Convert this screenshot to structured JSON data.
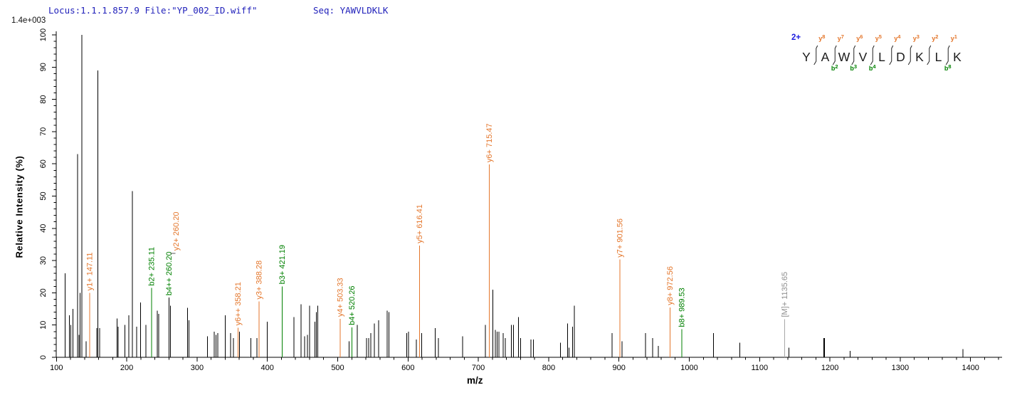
{
  "header": {
    "locus_file": "Locus:1.1.1.857.9 File:\"YP_002_ID.wiff\"",
    "sequence": "Seq: YAWVLDKLK",
    "base_peak_intensity": "1.4e+003"
  },
  "colors": {
    "y_ion_orange": "#E4762B",
    "b_ion_green": "#008000",
    "precursor_gray_line": "#A8A8A8",
    "precursor_gray_text": "#8E8E8E",
    "header_blue": "#2222BB",
    "charge_blue": "#1C1CDF",
    "peak_black": "#000000"
  },
  "chart_data": {
    "type": "bar",
    "subtype": "mass-spectrum",
    "title": "",
    "xlabel": "m/z",
    "ylabel": "Relative  Intensity (%)",
    "xlim": [
      100,
      1445
    ],
    "ylim": [
      0,
      100
    ],
    "x_major_ticks": [
      100,
      200,
      300,
      400,
      500,
      600,
      700,
      800,
      900,
      1000,
      1100,
      1200,
      1300,
      1400
    ],
    "x_minor_step": 20,
    "y_major_ticks": [
      0,
      10,
      20,
      30,
      40,
      50,
      60,
      70,
      80,
      90,
      100
    ],
    "y_minor_step": 2,
    "grid": false,
    "peaks_format": [
      "mz",
      "relative_intensity_pct",
      "optional_px_width"
    ],
    "peaks": [
      [
        112.1,
        26
      ],
      [
        118.2,
        13
      ],
      [
        120.3,
        10
      ],
      [
        123.5,
        15
      ],
      [
        130.1,
        63
      ],
      [
        132.3,
        7
      ],
      [
        133.8,
        20
      ],
      [
        136.1,
        100
      ],
      [
        142,
        5
      ],
      [
        157.5,
        9
      ],
      [
        159.1,
        89
      ],
      [
        161.5,
        9
      ],
      [
        186,
        12
      ],
      [
        187.8,
        9.5
      ],
      [
        197.5,
        10
      ],
      [
        203,
        13
      ],
      [
        208,
        51.5
      ],
      [
        214,
        9.5
      ],
      [
        219.5,
        17
      ],
      [
        227,
        10
      ],
      [
        243.5,
        14.5
      ],
      [
        245.5,
        13.5
      ],
      [
        262,
        16
      ],
      [
        286.5,
        15.3
      ],
      [
        288.5,
        11.5
      ],
      [
        315,
        6.5
      ],
      [
        324.5,
        8
      ],
      [
        327,
        7
      ],
      [
        329.5,
        7.5
      ],
      [
        340,
        13
      ],
      [
        347.5,
        7.5
      ],
      [
        351.5,
        6
      ],
      [
        360.5,
        8
      ],
      [
        376.5,
        6
      ],
      [
        385,
        6
      ],
      [
        400,
        11
      ],
      [
        438,
        12.5
      ],
      [
        448,
        16.5
      ],
      [
        453,
        6.5
      ],
      [
        457,
        7
      ],
      [
        460,
        16
      ],
      [
        467.5,
        11
      ],
      [
        469.5,
        14
      ],
      [
        471.5,
        16
      ],
      [
        516,
        5
      ],
      [
        528,
        10
      ],
      [
        541,
        6
      ],
      [
        544,
        6
      ],
      [
        547,
        7.5
      ],
      [
        552,
        10.5
      ],
      [
        558,
        11.5
      ],
      [
        570.5,
        14.5
      ],
      [
        573,
        14
      ],
      [
        598,
        7.5
      ],
      [
        600.5,
        8
      ],
      [
        612,
        5.5
      ],
      [
        619.5,
        7.5
      ],
      [
        638.5,
        9
      ],
      [
        643,
        6
      ],
      [
        677.5,
        6.5
      ],
      [
        710,
        10
      ],
      [
        720.5,
        21
      ],
      [
        724,
        8.5
      ],
      [
        726.5,
        8
      ],
      [
        729,
        8
      ],
      [
        735.5,
        7.5
      ],
      [
        738.5,
        6
      ],
      [
        747,
        10
      ],
      [
        750,
        10
      ],
      [
        757,
        12.5
      ],
      [
        760,
        6
      ],
      [
        775,
        5.5
      ],
      [
        778.5,
        5.5
      ],
      [
        817,
        4.5
      ],
      [
        827,
        10.5
      ],
      [
        829,
        3
      ],
      [
        834,
        9.5
      ],
      [
        836.5,
        16
      ],
      [
        890,
        7.5
      ],
      [
        904.5,
        5
      ],
      [
        938,
        7.5
      ],
      [
        948,
        6
      ],
      [
        956,
        3.5
      ],
      [
        1034.5,
        7.5
      ],
      [
        1072,
        4.5
      ],
      [
        1141.5,
        3
      ],
      [
        1192,
        6,
        2
      ],
      [
        1228.5,
        2
      ],
      [
        1389,
        2.5
      ]
    ],
    "labeled_peaks": [
      {
        "ion": "y1+",
        "label": "y1+ 147.11",
        "mz": 147.11,
        "intensity": 20,
        "color": "orange"
      },
      {
        "ion": "b2+",
        "label": "b2+ 235.11",
        "mz": 235.11,
        "intensity": 21.5,
        "color": "green"
      },
      {
        "ion": "b4++",
        "label": "b4++ 260.20",
        "mz": 260.2,
        "intensity": 18.5,
        "color": "green",
        "line_color": "black",
        "label2": {
          "ion": "y2+",
          "label": "y2+ 260.20",
          "color": "orange"
        }
      },
      {
        "ion": "y6++",
        "label": "y6++ 358.21",
        "mz": 358.21,
        "intensity": 9.2,
        "color": "orange"
      },
      {
        "ion": "y3+",
        "label": "y3+ 388.28",
        "mz": 388.28,
        "intensity": 17.3,
        "color": "orange"
      },
      {
        "ion": "b3+",
        "label": "b3+ 421.19",
        "mz": 421.19,
        "intensity": 22,
        "color": "green"
      },
      {
        "ion": "y4+",
        "label": "y4+ 503.33",
        "mz": 503.33,
        "intensity": 11.9,
        "color": "orange"
      },
      {
        "ion": "b4+",
        "label": "b4+ 520.26",
        "mz": 520.26,
        "intensity": 9.3,
        "color": "green"
      },
      {
        "ion": "y5+",
        "label": "y5+ 616.41",
        "mz": 616.41,
        "intensity": 34.7,
        "color": "orange"
      },
      {
        "ion": "y6+",
        "label": "y6+ 715.47",
        "mz": 715.47,
        "intensity": 59.8,
        "color": "orange"
      },
      {
        "ion": "y7+",
        "label": "y7+ 901.56",
        "mz": 901.56,
        "intensity": 30.3,
        "color": "orange"
      },
      {
        "ion": "y8+",
        "label": "y8+ 972.56",
        "mz": 972.56,
        "intensity": 15.5,
        "color": "orange"
      },
      {
        "ion": "b8+",
        "label": "b8+ 989.53",
        "mz": 989.53,
        "intensity": 8.7,
        "color": "green"
      },
      {
        "ion": "[M]+",
        "label": "[M]+ 1135.65",
        "mz": 1135.65,
        "intensity": 11.8,
        "color": "gray"
      }
    ]
  },
  "peptide_panel": {
    "charge": "2+",
    "residues": [
      "Y",
      "A",
      "W",
      "V",
      "L",
      "D",
      "K",
      "L",
      "K"
    ],
    "y_ions": [
      "y8",
      "y7",
      "y6",
      "y5",
      "y4",
      "y3",
      "y2",
      "y1"
    ],
    "b_ions": [
      {
        "label": "b2",
        "gap": 1
      },
      {
        "label": "b3",
        "gap": 2
      },
      {
        "label": "b4",
        "gap": 3
      },
      {
        "label": "b8",
        "gap": 7
      }
    ]
  }
}
